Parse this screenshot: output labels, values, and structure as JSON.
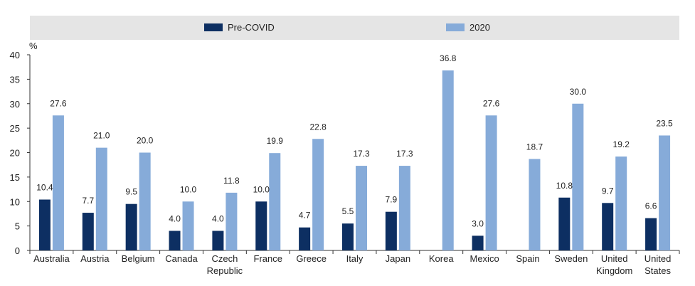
{
  "chart_data": {
    "type": "bar",
    "unit_label": "%",
    "ylim": [
      0,
      40
    ],
    "yticks": [
      0,
      5,
      10,
      15,
      20,
      25,
      30,
      35,
      40
    ],
    "grid": false,
    "legend_position": "top",
    "categories": [
      [
        "Australia"
      ],
      [
        "Austria"
      ],
      [
        "Belgium"
      ],
      [
        "Canada"
      ],
      [
        "Czech",
        "Republic"
      ],
      [
        "France"
      ],
      [
        "Greece"
      ],
      [
        "Italy"
      ],
      [
        "Japan"
      ],
      [
        "Korea"
      ],
      [
        "Mexico"
      ],
      [
        "Spain"
      ],
      [
        "Sweden"
      ],
      [
        "United",
        "Kingdom"
      ],
      [
        "United",
        "States"
      ]
    ],
    "series": [
      {
        "name": "Pre-COVID",
        "color": "#0d2f62",
        "values": [
          10.4,
          7.7,
          9.5,
          4.0,
          4.0,
          10.0,
          4.7,
          5.5,
          7.9,
          null,
          3.0,
          null,
          10.8,
          9.7,
          6.6
        ],
        "labels": [
          "10.4",
          "7.7",
          "9.5",
          "4.0",
          "4.0",
          "10.0",
          "4.7",
          "5.5",
          "7.9",
          "",
          "3.0",
          "",
          "10.8",
          "9.7",
          "6.6"
        ]
      },
      {
        "name": "2020",
        "color": "#86abd9",
        "values": [
          27.6,
          21.0,
          20.0,
          10.0,
          11.8,
          19.9,
          22.8,
          17.3,
          17.3,
          36.8,
          27.6,
          18.7,
          30.0,
          19.2,
          23.5
        ],
        "labels": [
          "27.6",
          "21.0",
          "20.0",
          "10.0",
          "11.8",
          "19.9",
          "22.8",
          "17.3",
          "17.3",
          "36.8",
          "27.6",
          "18.7",
          "30.0",
          "19.2",
          "23.5"
        ]
      }
    ]
  },
  "colors": {
    "legend_background": "#e5e5e5",
    "axis": "#333333"
  }
}
